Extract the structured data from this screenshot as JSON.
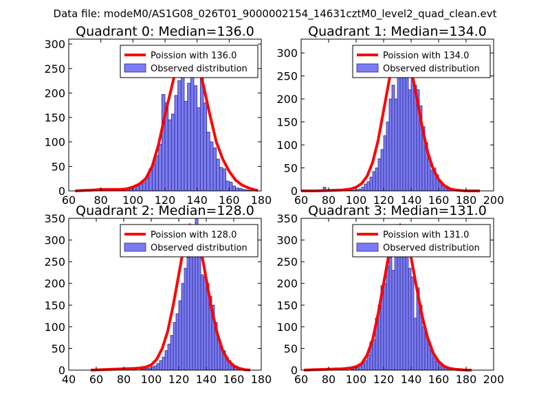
{
  "figure": {
    "suptitle": "Data file: modeM0/AS1G08_026T01_9000002154_14631cztM0_level2_quad_clean.evt"
  },
  "colors": {
    "fit": "#ff0000",
    "bar_fill": "#7b7bf2",
    "bar_edge": "#2b2b8a"
  },
  "chart_data": [
    {
      "type": "bar",
      "title": "Quadrant 0: Median=136.0",
      "xlim": [
        60,
        180
      ],
      "ylim": [
        0,
        310
      ],
      "xticks": [
        60,
        80,
        100,
        120,
        140,
        160,
        180
      ],
      "yticks": [
        0,
        50,
        100,
        150,
        200,
        250,
        300
      ],
      "legend": [
        "Poission with 136.0",
        "Observed distribution"
      ],
      "legend_position": "top-right",
      "bins": [
        66,
        68,
        70,
        72,
        74,
        76,
        78,
        80,
        82,
        84,
        86,
        88,
        90,
        92,
        94,
        96,
        98,
        100,
        102,
        104,
        106,
        108,
        110,
        112,
        114,
        116,
        118,
        120,
        122,
        124,
        126,
        128,
        130,
        132,
        134,
        136,
        138,
        140,
        142,
        144,
        146,
        148,
        150,
        152,
        154,
        156,
        158,
        160,
        162,
        164,
        166,
        168,
        170,
        172,
        174,
        176,
        178
      ],
      "bin_width": 2,
      "values": [
        1,
        2,
        3,
        3,
        3,
        3,
        3,
        5,
        4,
        3,
        2,
        2,
        3,
        4,
        4,
        3,
        4,
        8,
        10,
        14,
        18,
        28,
        45,
        55,
        72,
        95,
        197,
        180,
        145,
        157,
        195,
        225,
        246,
        183,
        220,
        276,
        215,
        170,
        230,
        180,
        120,
        100,
        88,
        65,
        48,
        45,
        20,
        18,
        10,
        6,
        5,
        3,
        2,
        1,
        1,
        0,
        0
      ],
      "fit": {
        "label": "Poission with 136.0",
        "x": [
          64,
          70,
          76,
          80,
          84,
          88,
          92,
          96,
          100,
          104,
          108,
          112,
          116,
          120,
          124,
          128,
          132,
          136,
          140,
          144,
          148,
          152,
          156,
          160,
          164,
          168,
          172,
          176,
          178
        ],
        "y": [
          0,
          1,
          2,
          3,
          3,
          3,
          3,
          4,
          8,
          14,
          25,
          50,
          95,
          155,
          210,
          265,
          290,
          290,
          265,
          215,
          155,
          100,
          65,
          40,
          22,
          12,
          6,
          2,
          1
        ]
      }
    },
    {
      "type": "bar",
      "title": "Quadrant 1: Median=134.0",
      "xlim": [
        60,
        200
      ],
      "ylim": [
        0,
        330
      ],
      "xticks": [
        60,
        80,
        100,
        120,
        140,
        160,
        180,
        200
      ],
      "yticks": [
        0,
        50,
        100,
        150,
        200,
        250,
        300
      ],
      "legend": [
        "Poission with 134.0",
        "Observed distribution"
      ],
      "legend_position": "top-right",
      "bins": [
        76,
        78,
        80,
        96,
        98,
        100,
        102,
        104,
        106,
        108,
        110,
        112,
        114,
        116,
        118,
        120,
        122,
        124,
        126,
        128,
        130,
        132,
        134,
        136,
        138,
        140,
        142,
        144,
        146,
        148,
        150,
        152,
        154,
        156,
        158,
        160,
        162,
        164,
        166,
        168,
        170,
        172,
        174
      ],
      "bin_width": 2,
      "values": [
        8,
        3,
        1,
        1,
        2,
        3,
        4,
        8,
        15,
        20,
        30,
        42,
        50,
        70,
        90,
        120,
        150,
        200,
        230,
        200,
        270,
        250,
        305,
        260,
        220,
        250,
        230,
        220,
        185,
        140,
        105,
        70,
        45,
        50,
        35,
        20,
        12,
        6,
        3,
        2,
        1,
        1,
        0
      ],
      "fit": {
        "label": "Poission with 134.0",
        "x": [
          60,
          70,
          80,
          90,
          96,
          100,
          104,
          108,
          112,
          116,
          120,
          124,
          128,
          132,
          136,
          140,
          144,
          148,
          152,
          156,
          160,
          164,
          168,
          172,
          176,
          180,
          190
        ],
        "y": [
          0,
          0,
          1,
          2,
          4,
          8,
          16,
          32,
          62,
          110,
          175,
          240,
          290,
          310,
          305,
          265,
          205,
          140,
          85,
          48,
          25,
          12,
          5,
          2,
          1,
          0,
          0
        ]
      }
    },
    {
      "type": "bar",
      "title": "Quadrant 2: Median=128.0",
      "xlim": [
        40,
        180
      ],
      "ylim": [
        0,
        350
      ],
      "xticks": [
        40,
        60,
        80,
        100,
        120,
        140,
        160,
        180
      ],
      "yticks": [
        0,
        50,
        100,
        150,
        200,
        250,
        300,
        350
      ],
      "legend": [
        "Poission with 128.0",
        "Observed distribution"
      ],
      "legend_position": "top-right",
      "bins": [
        58,
        62,
        66,
        70,
        74,
        80,
        82,
        92,
        94,
        96,
        98,
        100,
        102,
        104,
        106,
        108,
        110,
        112,
        114,
        116,
        118,
        120,
        122,
        124,
        126,
        128,
        130,
        132,
        134,
        136,
        138,
        140,
        142,
        144,
        146,
        148,
        150,
        152,
        154,
        156,
        158,
        160,
        162,
        164,
        166
      ],
      "bin_width": 2,
      "values": [
        2,
        2,
        2,
        1,
        3,
        5,
        5,
        2,
        3,
        4,
        5,
        8,
        10,
        15,
        22,
        30,
        45,
        60,
        80,
        110,
        130,
        160,
        200,
        235,
        260,
        320,
        300,
        350,
        300,
        220,
        215,
        200,
        170,
        150,
        110,
        70,
        55,
        45,
        30,
        22,
        15,
        10,
        6,
        3,
        1
      ],
      "fit": {
        "label": "Poission with 128.0",
        "x": [
          56,
          64,
          72,
          80,
          88,
          92,
          96,
          100,
          104,
          108,
          112,
          116,
          120,
          124,
          128,
          132,
          136,
          140,
          144,
          148,
          152,
          156,
          160,
          164,
          168,
          172
        ],
        "y": [
          0,
          1,
          2,
          3,
          4,
          5,
          7,
          12,
          25,
          50,
          90,
          150,
          220,
          290,
          335,
          325,
          280,
          210,
          140,
          85,
          45,
          22,
          10,
          4,
          1,
          0
        ]
      }
    },
    {
      "type": "bar",
      "title": "Quadrant 3: Median=131.0",
      "xlim": [
        60,
        200
      ],
      "ylim": [
        0,
        350
      ],
      "xticks": [
        60,
        80,
        100,
        120,
        140,
        160,
        180,
        200
      ],
      "yticks": [
        0,
        50,
        100,
        150,
        200,
        250,
        300,
        350
      ],
      "legend": [
        "Poission with 131.0",
        "Observed distribution"
      ],
      "legend_position": "top-right",
      "bins": [
        68,
        72,
        84,
        88,
        96,
        98,
        100,
        102,
        104,
        106,
        108,
        110,
        112,
        114,
        116,
        118,
        120,
        122,
        124,
        126,
        128,
        130,
        132,
        134,
        136,
        138,
        140,
        142,
        144,
        146,
        148,
        150,
        152,
        154,
        156,
        158,
        160,
        162,
        164,
        166,
        168,
        170,
        172,
        174
      ],
      "bin_width": 2,
      "values": [
        2,
        3,
        5,
        3,
        2,
        5,
        8,
        10,
        15,
        22,
        35,
        65,
        70,
        120,
        150,
        195,
        200,
        240,
        260,
        230,
        300,
        335,
        300,
        270,
        280,
        235,
        215,
        120,
        190,
        150,
        100,
        85,
        60,
        45,
        30,
        20,
        18,
        10,
        5,
        3,
        2,
        1,
        1,
        0
      ],
      "fit": {
        "label": "Poission with 131.0",
        "x": [
          62,
          70,
          80,
          90,
          96,
          100,
          104,
          108,
          112,
          116,
          120,
          124,
          128,
          132,
          136,
          140,
          144,
          148,
          152,
          156,
          160,
          164,
          168,
          172,
          176,
          180,
          184
        ],
        "y": [
          0,
          1,
          2,
          3,
          5,
          8,
          15,
          35,
          70,
          130,
          200,
          270,
          320,
          335,
          310,
          260,
          190,
          125,
          75,
          40,
          20,
          9,
          4,
          2,
          1,
          0,
          0
        ]
      }
    }
  ]
}
